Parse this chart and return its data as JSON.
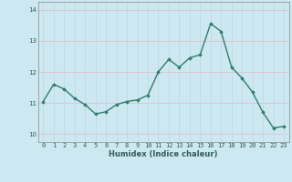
{
  "xlabel": "Humidex (Indice chaleur)",
  "x": [
    0,
    1,
    2,
    3,
    4,
    5,
    6,
    7,
    8,
    9,
    10,
    11,
    12,
    13,
    14,
    15,
    16,
    17,
    18,
    19,
    20,
    21,
    22,
    23
  ],
  "y": [
    11.05,
    11.6,
    11.45,
    11.15,
    10.95,
    10.65,
    10.72,
    10.95,
    11.05,
    11.1,
    11.25,
    12.0,
    12.4,
    12.15,
    12.45,
    12.55,
    13.55,
    13.3,
    12.15,
    11.8,
    11.35,
    10.7,
    10.2,
    10.25
  ],
  "line_color": "#2e7d6e",
  "marker": "D",
  "marker_size": 1.8,
  "bg_color": "#cde8f0",
  "grid_color_v": "#b8d8e8",
  "grid_color_h": "#e8b8b8",
  "ylim": [
    9.75,
    14.25
  ],
  "yticks": [
    10,
    11,
    12,
    13,
    14
  ],
  "xticks": [
    0,
    1,
    2,
    3,
    4,
    5,
    6,
    7,
    8,
    9,
    10,
    11,
    12,
    13,
    14,
    15,
    16,
    17,
    18,
    19,
    20,
    21,
    22,
    23
  ],
  "linewidth": 1.0,
  "figsize": [
    3.2,
    2.0
  ],
  "dpi": 100
}
